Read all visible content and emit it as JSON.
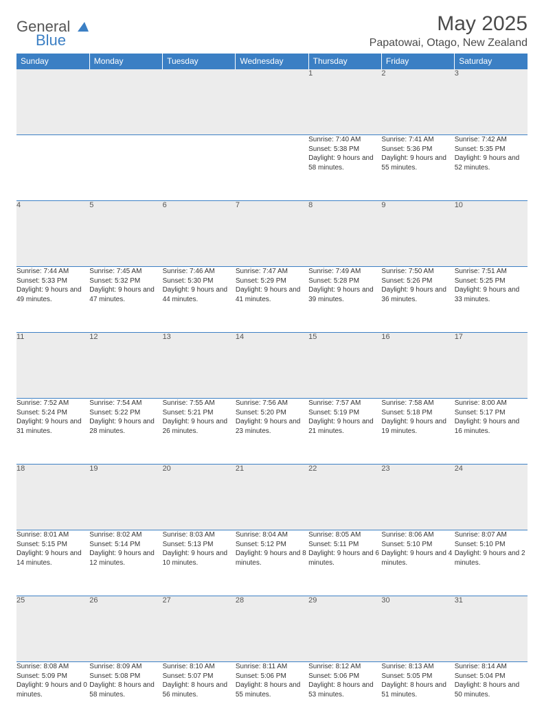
{
  "brand": {
    "word1": "General",
    "word2": "Blue"
  },
  "title": "May 2025",
  "location": "Papatowai, Otago, New Zealand",
  "colors": {
    "header_bg": "#3b7fc4",
    "header_text": "#ffffff",
    "daynum_bg": "#ececec",
    "text": "#333333",
    "border": "#3b7fc4",
    "page_bg": "#ffffff"
  },
  "weekdays": [
    "Sunday",
    "Monday",
    "Tuesday",
    "Wednesday",
    "Thursday",
    "Friday",
    "Saturday"
  ],
  "weeks": [
    [
      null,
      null,
      null,
      null,
      {
        "n": "1",
        "sr": "7:40 AM",
        "ss": "5:38 PM",
        "dl": "9 hours and 58 minutes."
      },
      {
        "n": "2",
        "sr": "7:41 AM",
        "ss": "5:36 PM",
        "dl": "9 hours and 55 minutes."
      },
      {
        "n": "3",
        "sr": "7:42 AM",
        "ss": "5:35 PM",
        "dl": "9 hours and 52 minutes."
      }
    ],
    [
      {
        "n": "4",
        "sr": "7:44 AM",
        "ss": "5:33 PM",
        "dl": "9 hours and 49 minutes."
      },
      {
        "n": "5",
        "sr": "7:45 AM",
        "ss": "5:32 PM",
        "dl": "9 hours and 47 minutes."
      },
      {
        "n": "6",
        "sr": "7:46 AM",
        "ss": "5:30 PM",
        "dl": "9 hours and 44 minutes."
      },
      {
        "n": "7",
        "sr": "7:47 AM",
        "ss": "5:29 PM",
        "dl": "9 hours and 41 minutes."
      },
      {
        "n": "8",
        "sr": "7:49 AM",
        "ss": "5:28 PM",
        "dl": "9 hours and 39 minutes."
      },
      {
        "n": "9",
        "sr": "7:50 AM",
        "ss": "5:26 PM",
        "dl": "9 hours and 36 minutes."
      },
      {
        "n": "10",
        "sr": "7:51 AM",
        "ss": "5:25 PM",
        "dl": "9 hours and 33 minutes."
      }
    ],
    [
      {
        "n": "11",
        "sr": "7:52 AM",
        "ss": "5:24 PM",
        "dl": "9 hours and 31 minutes."
      },
      {
        "n": "12",
        "sr": "7:54 AM",
        "ss": "5:22 PM",
        "dl": "9 hours and 28 minutes."
      },
      {
        "n": "13",
        "sr": "7:55 AM",
        "ss": "5:21 PM",
        "dl": "9 hours and 26 minutes."
      },
      {
        "n": "14",
        "sr": "7:56 AM",
        "ss": "5:20 PM",
        "dl": "9 hours and 23 minutes."
      },
      {
        "n": "15",
        "sr": "7:57 AM",
        "ss": "5:19 PM",
        "dl": "9 hours and 21 minutes."
      },
      {
        "n": "16",
        "sr": "7:58 AM",
        "ss": "5:18 PM",
        "dl": "9 hours and 19 minutes."
      },
      {
        "n": "17",
        "sr": "8:00 AM",
        "ss": "5:17 PM",
        "dl": "9 hours and 16 minutes."
      }
    ],
    [
      {
        "n": "18",
        "sr": "8:01 AM",
        "ss": "5:15 PM",
        "dl": "9 hours and 14 minutes."
      },
      {
        "n": "19",
        "sr": "8:02 AM",
        "ss": "5:14 PM",
        "dl": "9 hours and 12 minutes."
      },
      {
        "n": "20",
        "sr": "8:03 AM",
        "ss": "5:13 PM",
        "dl": "9 hours and 10 minutes."
      },
      {
        "n": "21",
        "sr": "8:04 AM",
        "ss": "5:12 PM",
        "dl": "9 hours and 8 minutes."
      },
      {
        "n": "22",
        "sr": "8:05 AM",
        "ss": "5:11 PM",
        "dl": "9 hours and 6 minutes."
      },
      {
        "n": "23",
        "sr": "8:06 AM",
        "ss": "5:10 PM",
        "dl": "9 hours and 4 minutes."
      },
      {
        "n": "24",
        "sr": "8:07 AM",
        "ss": "5:10 PM",
        "dl": "9 hours and 2 minutes."
      }
    ],
    [
      {
        "n": "25",
        "sr": "8:08 AM",
        "ss": "5:09 PM",
        "dl": "9 hours and 0 minutes."
      },
      {
        "n": "26",
        "sr": "8:09 AM",
        "ss": "5:08 PM",
        "dl": "8 hours and 58 minutes."
      },
      {
        "n": "27",
        "sr": "8:10 AM",
        "ss": "5:07 PM",
        "dl": "8 hours and 56 minutes."
      },
      {
        "n": "28",
        "sr": "8:11 AM",
        "ss": "5:06 PM",
        "dl": "8 hours and 55 minutes."
      },
      {
        "n": "29",
        "sr": "8:12 AM",
        "ss": "5:06 PM",
        "dl": "8 hours and 53 minutes."
      },
      {
        "n": "30",
        "sr": "8:13 AM",
        "ss": "5:05 PM",
        "dl": "8 hours and 51 minutes."
      },
      {
        "n": "31",
        "sr": "8:14 AM",
        "ss": "5:04 PM",
        "dl": "8 hours and 50 minutes."
      }
    ]
  ],
  "labels": {
    "sunrise": "Sunrise:",
    "sunset": "Sunset:",
    "daylight": "Daylight:"
  }
}
